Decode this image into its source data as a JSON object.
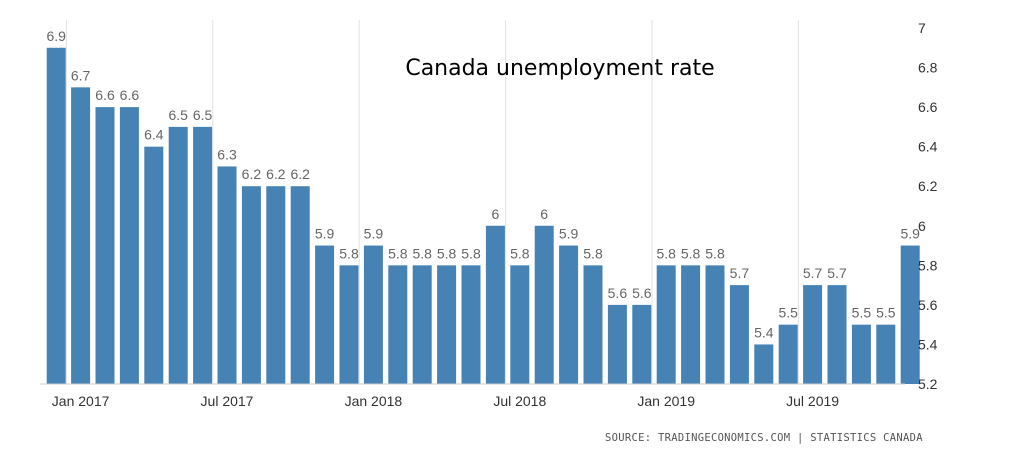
{
  "chart_data": {
    "type": "bar",
    "title": "Canada unemployment rate",
    "categories": [
      "Dec 2016",
      "Jan 2017",
      "Feb 2017",
      "Mar 2017",
      "Apr 2017",
      "May 2017",
      "Jun 2017",
      "Jul 2017",
      "Aug 2017",
      "Sep 2017",
      "Oct 2017",
      "Nov 2017",
      "Dec 2017",
      "Jan 2018",
      "Feb 2018",
      "Mar 2018",
      "Apr 2018",
      "May 2018",
      "Jun 2018",
      "Jul 2018",
      "Aug 2018",
      "Sep 2018",
      "Oct 2018",
      "Nov 2018",
      "Dec 2018",
      "Jan 2019",
      "Feb 2019",
      "Mar 2019",
      "Apr 2019",
      "May 2019",
      "Jun 2019",
      "Jul 2019",
      "Aug 2019",
      "Sep 2019",
      "Oct 2019",
      "Nov 2019"
    ],
    "values": [
      6.9,
      6.7,
      6.6,
      6.6,
      6.4,
      6.5,
      6.5,
      6.3,
      6.2,
      6.2,
      6.2,
      5.9,
      5.8,
      5.9,
      5.8,
      5.8,
      5.8,
      5.8,
      6,
      5.8,
      6,
      5.9,
      5.8,
      5.6,
      5.6,
      5.8,
      5.8,
      5.8,
      5.7,
      5.4,
      5.5,
      5.7,
      5.7,
      5.5,
      5.5,
      5.9
    ],
    "xticks": [
      "Jan 2017",
      "Jul 2017",
      "Jan 2018",
      "Jul 2018",
      "Jan 2019",
      "Jul 2019"
    ],
    "xtick_indices": [
      1,
      7,
      13,
      19,
      25,
      31
    ],
    "yticks": [
      "7",
      "6.8",
      "6.6",
      "6.4",
      "6.2",
      "6",
      "5.8",
      "5.6",
      "5.4",
      "5.2"
    ],
    "ylim": [
      5.2,
      7
    ],
    "yaxis_side": "right",
    "grid": "vertical",
    "bar_color": "#4682b4",
    "source": "SOURCE: TRADINGECONOMICS.COM | STATISTICS CANADA"
  }
}
